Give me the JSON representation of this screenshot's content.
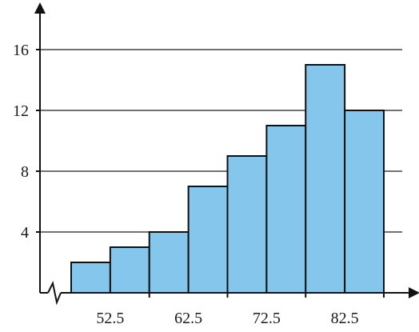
{
  "chart_data": {
    "type": "bar",
    "bar_style": "histogram",
    "categories": [
      "47.5–52.5",
      "52.5–57.5",
      "57.5–62.5",
      "62.5–67.5",
      "67.5–72.5",
      "72.5–77.5",
      "77.5–82.5",
      "82.5–87.5"
    ],
    "bin_edges": [
      47.5,
      52.5,
      57.5,
      62.5,
      67.5,
      72.5,
      77.5,
      82.5,
      87.5
    ],
    "values": [
      2,
      3,
      4,
      7,
      9,
      11,
      15,
      12
    ],
    "title": "",
    "xlabel": "",
    "ylabel": "",
    "xlim": [
      47.5,
      87.5
    ],
    "ylim": [
      0,
      16
    ],
    "x_ticks": [
      52.5,
      62.5,
      72.5,
      82.5
    ],
    "x_tick_labels": [
      "52.5",
      "62.5",
      "72.5",
      "82.5"
    ],
    "y_ticks": [
      4,
      8,
      12,
      16
    ],
    "y_tick_labels": [
      "4",
      "8",
      "12",
      "16"
    ],
    "horizontal_grid": true,
    "x_axis_break": true,
    "legend": "none",
    "colors": {
      "bar_fill": "#85c7ec",
      "bar_stroke": "#111111",
      "grid": "#444444",
      "axis": "#111111"
    }
  }
}
